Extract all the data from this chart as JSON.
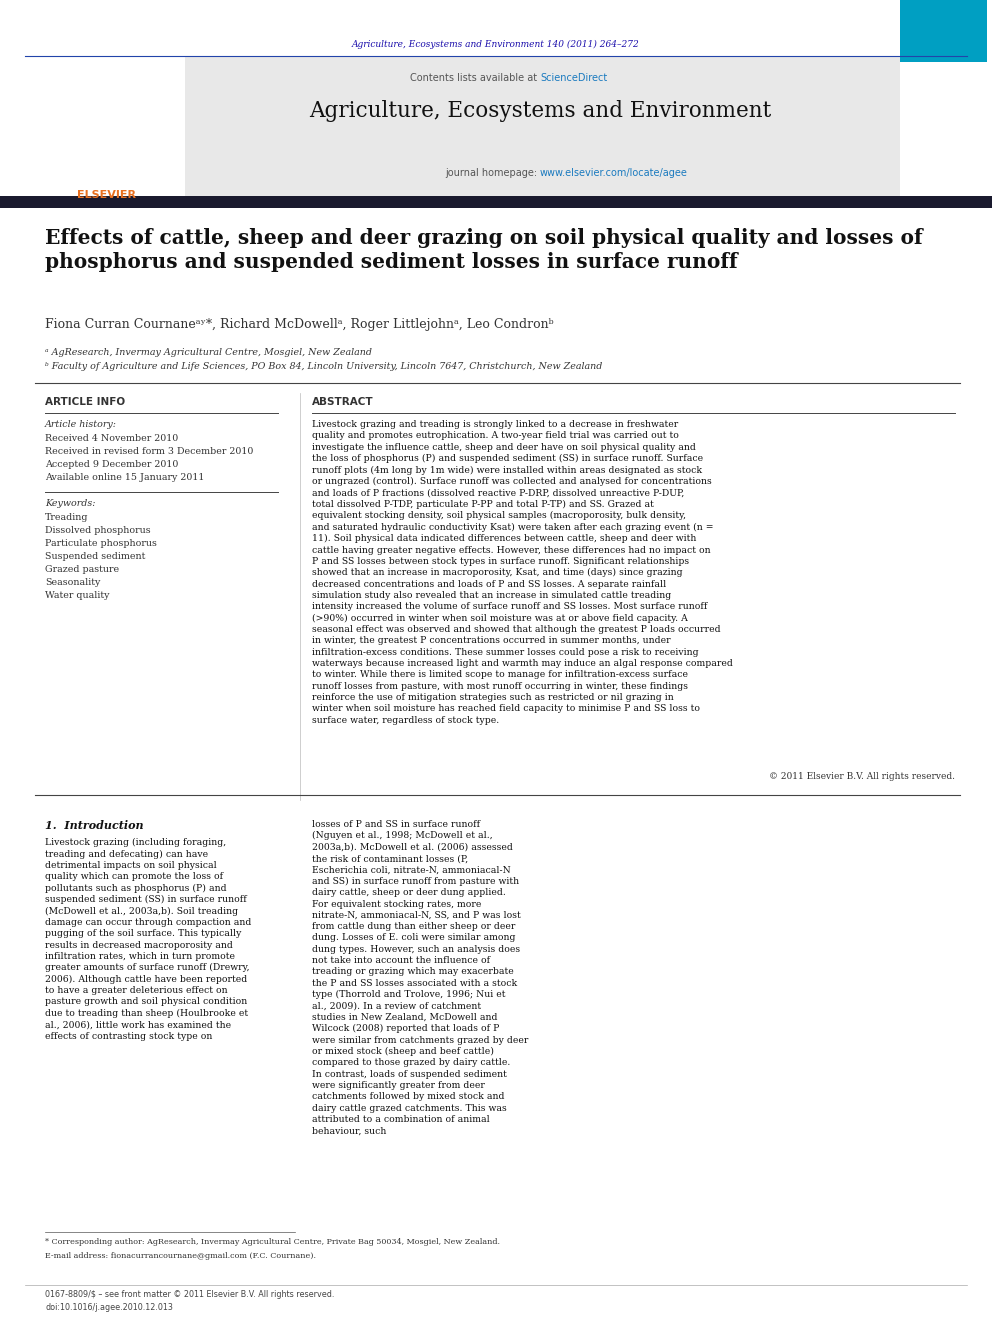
{
  "page_width": 9.92,
  "page_height": 13.23,
  "bg_color": "#ffffff",
  "journal_ref": "Agriculture, Ecosystems and Environment 140 (2011) 264–272",
  "journal_ref_color": "#1a0dab",
  "contents_line": "Contents lists available at",
  "sciencedirect_text": "ScienceDirect",
  "sciencedirect_color": "#1a7abf",
  "journal_name": "Agriculture, Ecosystems and Environment",
  "journal_homepage_prefix": "journal homepage: ",
  "journal_homepage_url": "www.elsevier.com/locate/agee",
  "journal_homepage_url_color": "#1a7abf",
  "header_bg": "#e8e8e8",
  "paper_title": "Effects of cattle, sheep and deer grazing on soil physical quality and losses of\nphosphorus and suspended sediment losses in surface runoff",
  "authors": "Fiona Curran Cournaneᵃʸ*, Richard McDowellᵃ, Roger Littlejohnᵃ, Leo Condronᵇ",
  "affil_a": "ᵃ AgResearch, Invermay Agricultural Centre, Mosgiel, New Zealand",
  "affil_b": "ᵇ Faculty of Agriculture and Life Sciences, PO Box 84, Lincoln University, Lincoln 7647, Christchurch, New Zealand",
  "article_info_title": "ARTICLE INFO",
  "abstract_title": "ABSTRACT",
  "article_history_label": "Article history:",
  "received1": "Received 4 November 2010",
  "received2": "Received in revised form 3 December 2010",
  "accepted": "Accepted 9 December 2010",
  "available": "Available online 15 January 2011",
  "keywords_label": "Keywords:",
  "keywords": [
    "Treading",
    "Dissolved phosphorus",
    "Particulate phosphorus",
    "Suspended sediment",
    "Grazed pasture",
    "Seasonality",
    "Water quality"
  ],
  "abstract_text": "Livestock grazing and treading is strongly linked to a decrease in freshwater quality and promotes eutrophication. A two-year field trial was carried out to investigate the influence cattle, sheep and deer have on soil physical quality and the loss of phosphorus (P) and suspended sediment (SS) in surface runoff. Surface runoff plots (4m long by 1m wide) were installed within areas designated as stock or ungrazed (control). Surface runoff was collected and analysed for concentrations and loads of P fractions (dissolved reactive P-DRP, dissolved unreactive P-DUP, total dissolved P-TDP, particulate P-PP and total P-TP) and SS. Grazed at equivalent stocking density, soil physical samples (macroporosity, bulk density, and saturated hydraulic conductivity Ksat) were taken after each grazing event (n = 11). Soil physical data indicated differences between cattle, sheep and deer with cattle having greater negative effects. However, these differences had no impact on P and SS losses between stock types in surface runoff. Significant relationships showed that an increase in macroporosity, Ksat, and time (days) since grazing decreased concentrations and loads of P and SS losses. A separate rainfall simulation study also revealed that an increase in simulated cattle treading intensity increased the volume of surface runoff and SS losses. Most surface runoff (>90%) occurred in winter when soil moisture was at or above field capacity. A seasonal effect was observed and showed that although the greatest P loads occurred in winter, the greatest P concentrations occurred in summer months, under infiltration-excess conditions. These summer losses could pose a risk to receiving waterways because increased light and warmth may induce an algal response compared to winter. While there is limited scope to manage for infiltration-excess surface runoff losses from pasture, with most runoff occurring in winter, these findings reinforce the use of mitigation strategies such as restricted or nil grazing in winter when soil moisture has reached field capacity to minimise P and SS loss to surface water, regardless of stock type.",
  "copyright_text": "© 2011 Elsevier B.V. All rights reserved.",
  "intro_header": "1.  Introduction",
  "intro_col1": "Livestock grazing (including foraging, treading and defecating) can have detrimental impacts on soil physical quality which can promote the loss of pollutants such as phosphorus (P) and suspended sediment (SS) in surface runoff (McDowell et al., 2003a,b). Soil treading damage can occur through compaction and pugging of the soil surface. This typically results in decreased macroporosity and infiltration rates, which in turn promote greater amounts of surface runoff (Drewry, 2006). Although cattle have been reported to have a greater deleterious effect on pasture growth and soil physical condition due to treading than sheep (Houlbrooke et al., 2006), little work has examined the effects of contrasting stock type on",
  "intro_col2": "losses of P and SS in surface runoff (Nguyen et al., 1998; McDowell et al., 2003a,b).\n    McDowell et al. (2006) assessed the risk of contaminant losses (P, Escherichia coli, nitrate-N, ammoniacal-N and SS) in surface runoff from pasture with dairy cattle, sheep or deer dung applied. For equivalent stocking rates, more nitrate-N, ammoniacal-N, SS, and P was lost from cattle dung than either sheep or deer dung. Losses of E. coli were similar among dung types. However, such an analysis does not take into account the influence of treading or grazing which may exacerbate the P and SS losses associated with a stock type (Thorrold and Trolove, 1996; Nui et al., 2009). In a review of catchment studies in New Zealand, McDowell and Wilcock (2008) reported that loads of P were similar from catchments grazed by deer or mixed stock (sheep and beef cattle) compared to those grazed by dairy cattle. In contrast, loads of suspended sediment were significantly greater from deer catchments followed by mixed stock and dairy cattle grazed catchments. This was attributed to a combination of animal behaviour, such",
  "footnote_star": "* Corresponding author: AgResearch, Invermay Agricultural Centre, Private Bag 50034, Mosgiel, New Zealand.",
  "footnote_email": "E-mail address: fionacurrancournane@gmail.com (F.C. Cournane).",
  "footer_line1": "0167-8809/$ – see front matter © 2011 Elsevier B.V. All rights reserved.",
  "footer_line2": "doi:10.1016/j.agee.2010.12.013"
}
